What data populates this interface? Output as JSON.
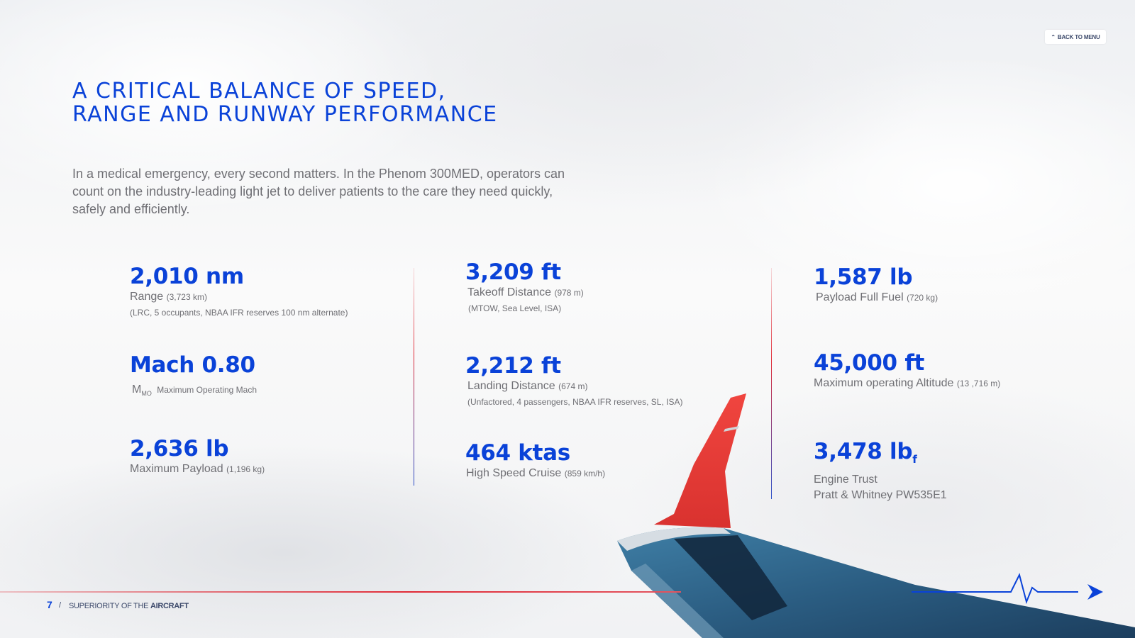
{
  "nav": {
    "back_label": "BACK TO MENU",
    "back_icon": "chevron-up-icon"
  },
  "header": {
    "title_line1": "A CRITICAL BALANCE OF SPEED,",
    "title_line2": "RANGE AND RUNWAY PERFORMANCE"
  },
  "intro": "In a medical emergency, every second matters. In the Phenom 300MED, operators can count on the industry-leading light jet to deliver patients to the care they need quickly, safely and efficiently.",
  "stats": {
    "range": {
      "value": "2,010 nm",
      "label": "Range",
      "unit": "(3,723 km)",
      "note": "(LRC, 5 occupants, NBAA IFR reserves 100 nm alternate)"
    },
    "mach": {
      "value": "Mach 0.80",
      "label_main": "M",
      "label_sub": "MO",
      "label_rest": "Maximum Operating Mach"
    },
    "payload": {
      "value": "2,636 lb",
      "label": "Maximum Payload",
      "unit": "(1,196 kg)"
    },
    "takeoff": {
      "value": "3,209 ft",
      "label": "Takeoff Distance",
      "unit": "(978 m)",
      "note": "(MTOW, Sea Level, ISA)"
    },
    "landing": {
      "value": "2,212 ft",
      "label": "Landing Distance",
      "unit": "(674 m)",
      "note": "(Unfactored, 4 passengers, NBAA IFR reserves, SL, ISA)"
    },
    "cruise": {
      "value": "464 ktas",
      "label": "High Speed Cruise",
      "unit": "(859 km/h)"
    },
    "payload_full": {
      "value": "1,587 lb",
      "label": "Payload Full Fuel",
      "unit": "(720 kg)"
    },
    "altitude": {
      "value": "45,000 ft",
      "label": "Maximum operating Altitude",
      "unit": "(13 ,716 m)"
    },
    "thrust": {
      "value": "3,478 lb",
      "value_sub": "f",
      "label": "Engine Trust",
      "engine": "Pratt & Whitney PW535E1"
    }
  },
  "footer": {
    "page": "7",
    "separator": "/",
    "section_prefix": "SUPERIORITY OF THE",
    "section_bold": "AIRCRAFT"
  },
  "colors": {
    "accent_blue": "#0a42d8",
    "accent_red": "#e02a36",
    "text_gray": "#6f6f74"
  }
}
